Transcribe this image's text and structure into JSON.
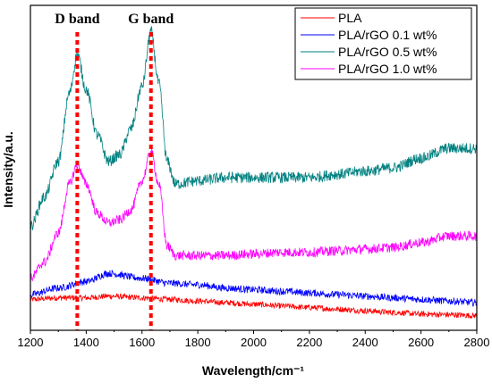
{
  "chart_data": {
    "type": "line",
    "xlabel": "Wavelength/cm⁻¹",
    "ylabel": "Intensity/a.u.",
    "xlim": [
      1200,
      2800
    ],
    "ylim": [
      0,
      10
    ],
    "xticks": [
      1200,
      1400,
      1600,
      1800,
      2000,
      2200,
      2400,
      2600,
      2800
    ],
    "y_tick_labels_shown": false,
    "legend_position": "top-right",
    "annotations": [
      {
        "label": "D band",
        "x": 1368
      },
      {
        "label": "G band",
        "x": 1632
      }
    ],
    "series": [
      {
        "name": "PLA",
        "color": "#ff0000",
        "x": [
          1200,
          1300,
          1400,
          1480,
          1600,
          1700,
          1800,
          1900,
          2000,
          2100,
          2200,
          2300,
          2400,
          2500,
          2600,
          2700,
          2800
        ],
        "y": [
          0.95,
          1.0,
          1.0,
          1.05,
          1.0,
          0.95,
          0.9,
          0.85,
          0.8,
          0.75,
          0.7,
          0.65,
          0.6,
          0.55,
          0.5,
          0.48,
          0.45
        ]
      },
      {
        "name": "PLA/rGO 0.1 wt%",
        "color": "#0000ff",
        "x": [
          1200,
          1300,
          1400,
          1480,
          1600,
          1700,
          1800,
          1900,
          2000,
          2100,
          2200,
          2300,
          2400,
          2500,
          2600,
          2700,
          2800
        ],
        "y": [
          1.1,
          1.3,
          1.5,
          1.75,
          1.6,
          1.45,
          1.4,
          1.3,
          1.25,
          1.2,
          1.15,
          1.1,
          1.05,
          1.0,
          0.95,
          0.9,
          0.85
        ]
      },
      {
        "name": "PLA/rGO 0.5 wt%",
        "color": "#008080",
        "x": [
          1200,
          1250,
          1300,
          1340,
          1368,
          1400,
          1440,
          1480,
          1520,
          1560,
          1600,
          1632,
          1660,
          1690,
          1720,
          1800,
          1900,
          2000,
          2100,
          2200,
          2300,
          2400,
          2500,
          2600,
          2700,
          2800
        ],
        "y": [
          3.2,
          4.1,
          5.2,
          7.3,
          8.5,
          7.4,
          6.0,
          5.2,
          5.4,
          6.2,
          7.5,
          9.2,
          7.6,
          5.2,
          4.5,
          4.6,
          4.7,
          4.7,
          4.7,
          4.7,
          4.8,
          4.9,
          5.0,
          5.3,
          5.6,
          5.6
        ]
      },
      {
        "name": "PLA/rGO 1.0 wt%",
        "color": "#ff00ff",
        "x": [
          1200,
          1250,
          1300,
          1340,
          1368,
          1400,
          1440,
          1480,
          1520,
          1560,
          1600,
          1632,
          1660,
          1690,
          1720,
          1800,
          1900,
          2000,
          2100,
          2200,
          2300,
          2400,
          2500,
          2600,
          2700,
          2800
        ],
        "y": [
          1.6,
          2.1,
          3.0,
          4.5,
          5.1,
          4.5,
          3.6,
          3.3,
          3.4,
          3.7,
          4.6,
          5.5,
          4.5,
          2.6,
          2.3,
          2.3,
          2.3,
          2.35,
          2.4,
          2.4,
          2.45,
          2.5,
          2.55,
          2.7,
          2.9,
          2.9
        ]
      }
    ]
  }
}
